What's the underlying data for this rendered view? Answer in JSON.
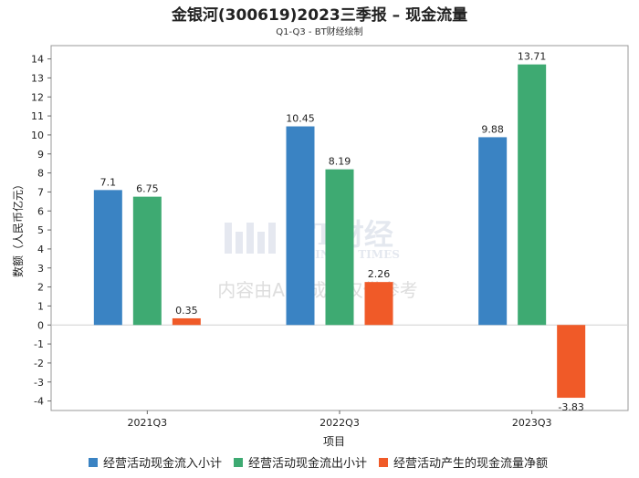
{
  "chart_data": {
    "type": "bar",
    "title": "金银河(300619)2023三季报 – 现金流量",
    "subtitle": "Q1-Q3 - BT财经绘制",
    "xlabel": "项目",
    "ylabel": "数额（人民币亿元）",
    "ylim": [
      -4.5,
      14.7
    ],
    "yticks": [
      14,
      13,
      12,
      11,
      10,
      9,
      8,
      7,
      6,
      5,
      4,
      3,
      2,
      1,
      0,
      -1,
      -2,
      -3,
      -4
    ],
    "ytick_labels": [
      "14",
      "13",
      "12",
      "11",
      "10",
      "9",
      "8",
      "7",
      "6",
      "5",
      "4",
      "3",
      "2",
      "1",
      "0",
      "-1",
      "-2",
      "-3",
      "-4"
    ],
    "categories": [
      "2021Q3",
      "2022Q3",
      "2023Q3"
    ],
    "series": [
      {
        "name": "经营活动现金流入小计",
        "color": "#3a83c3",
        "values": [
          7.1,
          10.45,
          9.88
        ],
        "labels": [
          "7.1",
          "10.45",
          "9.88"
        ]
      },
      {
        "name": "经营活动现金流出小计",
        "color": "#3eaa72",
        "values": [
          6.75,
          8.19,
          13.71
        ],
        "labels": [
          "6.75",
          "8.19",
          "13.71"
        ]
      },
      {
        "name": "经营活动产生的现金流量净额",
        "color": "#f05a28",
        "values": [
          0.35,
          2.26,
          -3.83
        ],
        "labels": [
          "0.35",
          "2.26",
          "-3.83"
        ]
      }
    ],
    "legend_position": "bottom",
    "grid": false
  },
  "watermark": {
    "logo": "BT财经",
    "logo_sub": "BUSINESS TIMES",
    "text": "内容由AI生成，仅供参考"
  }
}
